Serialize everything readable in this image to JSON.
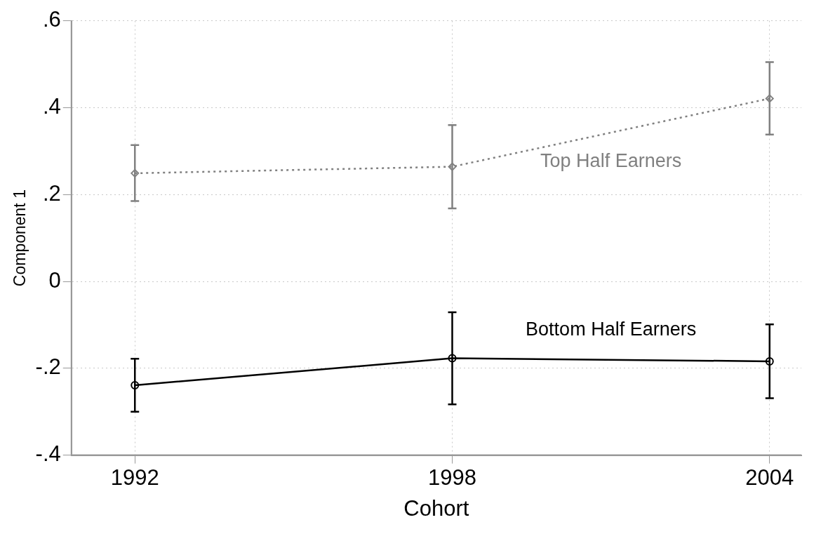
{
  "chart_data": {
    "type": "line",
    "xlabel": "Cohort",
    "ylabel": "Component 1",
    "x": [
      1992,
      1998,
      2004
    ],
    "series": [
      {
        "name": "Top Half Earners",
        "color": "#808080",
        "values": [
          0.249,
          0.264,
          0.421
        ],
        "errors": [
          [
            0.185,
            0.314
          ],
          [
            0.168,
            0.36
          ],
          [
            0.338,
            0.505
          ]
        ],
        "marker": "diamond",
        "line_style": "dotted"
      },
      {
        "name": "Bottom Half Earners",
        "color": "#000000",
        "values": [
          -0.239,
          -0.177,
          -0.184
        ],
        "errors": [
          [
            -0.3,
            -0.178
          ],
          [
            -0.283,
            -0.071
          ],
          [
            -0.269,
            -0.099
          ]
        ],
        "marker": "circle",
        "line_style": "solid"
      }
    ],
    "xlim": [
      1990.8,
      2004.6
    ],
    "xticks": [
      1992,
      1998,
      2004
    ],
    "ylim": [
      -0.4,
      0.6
    ],
    "yticks": [
      {
        "value": -0.4,
        "label": "-.4"
      },
      {
        "value": -0.2,
        "label": "-.2"
      },
      0,
      {
        "value": 0.2,
        "label": ".2"
      },
      {
        "value": 0.4,
        "label": ".4"
      },
      {
        "value": 0.6,
        "label": ".6"
      }
    ],
    "grid": true,
    "legend": false
  }
}
